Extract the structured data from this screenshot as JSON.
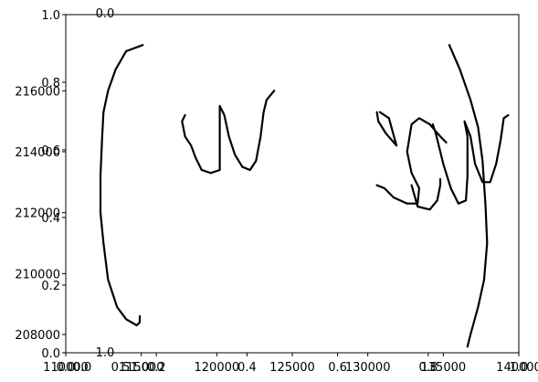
{
  "chart_data": {
    "type": "line",
    "description_of_marks": "handwritten strokes",
    "axes": [
      {
        "xlim": [
          0.0,
          1.0
        ],
        "ylim": [
          0.0,
          1.0
        ],
        "xticks": [
          "0.0",
          "0.2",
          "0.4",
          "0.6",
          "0.8",
          "1.0"
        ],
        "yticks": [
          "0.0",
          "0.2",
          "0.4",
          "0.6",
          "0.8",
          "1.0"
        ]
      },
      {
        "xlim": [
          110000,
          140000
        ],
        "ylim": [
          207400,
          218500
        ],
        "xticks": [
          "110000",
          "115000",
          "120000",
          "125000",
          "130000",
          "135000",
          "140000"
        ],
        "yticks": [
          "208000",
          "210000",
          "212000",
          "214000",
          "216000"
        ]
      },
      {
        "top_tick": "0.0",
        "bottom_tick": "1.0",
        "extra_bottom_ticks": [
          "0.0",
          "0.5",
          "1.0"
        ]
      }
    ],
    "series": [
      {
        "stroke": "left-paren",
        "points": [
          [
            115.1,
            217.5
          ],
          [
            114.0,
            217.3
          ],
          [
            113.3,
            216.7
          ],
          [
            112.8,
            216.0
          ],
          [
            112.5,
            215.3
          ],
          [
            112.4,
            214.4
          ],
          [
            112.3,
            213.2
          ],
          [
            112.3,
            212.0
          ],
          [
            112.5,
            211.0
          ],
          [
            112.8,
            209.8
          ],
          [
            113.4,
            208.9
          ],
          [
            114.0,
            208.5
          ],
          [
            114.7,
            208.3
          ],
          [
            114.9,
            208.4
          ],
          [
            114.9,
            208.6
          ]
        ]
      },
      {
        "stroke": "w1",
        "points": [
          [
            117.9,
            215.2
          ],
          [
            117.7,
            215.0
          ],
          [
            117.9,
            214.5
          ],
          [
            118.3,
            214.2
          ],
          [
            118.6,
            213.8
          ],
          [
            119.0,
            213.4
          ],
          [
            119.6,
            213.3
          ],
          [
            120.2,
            213.4
          ],
          [
            120.2,
            215.5
          ],
          [
            120.5,
            215.2
          ],
          [
            120.8,
            214.5
          ],
          [
            121.2,
            213.9
          ],
          [
            121.7,
            213.5
          ],
          [
            122.2,
            213.4
          ],
          [
            122.6,
            213.7
          ],
          [
            122.9,
            214.5
          ],
          [
            123.1,
            215.3
          ],
          [
            123.3,
            215.7
          ],
          [
            123.8,
            216.0
          ]
        ]
      },
      {
        "stroke": "s-upper",
        "points": [
          [
            130.6,
            215.3
          ],
          [
            130.7,
            215.0
          ],
          [
            131.2,
            214.6
          ],
          [
            131.9,
            214.2
          ],
          [
            131.4,
            215.1
          ],
          [
            130.8,
            215.3
          ]
        ]
      },
      {
        "stroke": "s-lower",
        "points": [
          [
            130.6,
            212.9
          ],
          [
            131.1,
            212.8
          ],
          [
            131.7,
            212.5
          ],
          [
            132.6,
            212.3
          ],
          [
            133.3,
            212.3
          ],
          [
            133.4,
            212.8
          ],
          [
            132.9,
            213.3
          ],
          [
            132.6,
            214.0
          ],
          [
            132.9,
            214.9
          ],
          [
            133.4,
            215.1
          ],
          [
            134.1,
            214.9
          ],
          [
            134.8,
            214.5
          ],
          [
            135.2,
            214.3
          ]
        ]
      },
      {
        "stroke": "s-tail",
        "points": [
          [
            132.9,
            212.9
          ],
          [
            133.3,
            212.2
          ],
          [
            134.1,
            212.1
          ],
          [
            134.6,
            212.4
          ],
          [
            134.8,
            212.9
          ],
          [
            134.8,
            213.1
          ]
        ]
      },
      {
        "stroke": "w2",
        "points": [
          [
            134.3,
            214.9
          ],
          [
            134.5,
            214.6
          ],
          [
            135.0,
            213.6
          ],
          [
            135.5,
            212.8
          ],
          [
            136.0,
            212.3
          ],
          [
            136.5,
            212.4
          ],
          [
            136.6,
            213.2
          ],
          [
            136.6,
            214.5
          ],
          [
            136.4,
            215.0
          ],
          [
            136.8,
            214.5
          ],
          [
            137.1,
            213.6
          ],
          [
            137.6,
            213.0
          ],
          [
            138.1,
            213.0
          ],
          [
            138.5,
            213.6
          ],
          [
            138.8,
            214.4
          ],
          [
            139.0,
            215.1
          ],
          [
            139.3,
            215.2
          ]
        ]
      },
      {
        "stroke": "right-paren",
        "points": [
          [
            135.4,
            217.5
          ],
          [
            136.1,
            216.7
          ],
          [
            136.8,
            215.7
          ],
          [
            137.3,
            214.8
          ],
          [
            137.6,
            213.7
          ],
          [
            137.8,
            212.2
          ],
          [
            137.9,
            211.0
          ],
          [
            137.7,
            209.8
          ],
          [
            137.3,
            208.9
          ],
          [
            136.8,
            208.0
          ],
          [
            136.6,
            207.6
          ]
        ]
      }
    ]
  }
}
